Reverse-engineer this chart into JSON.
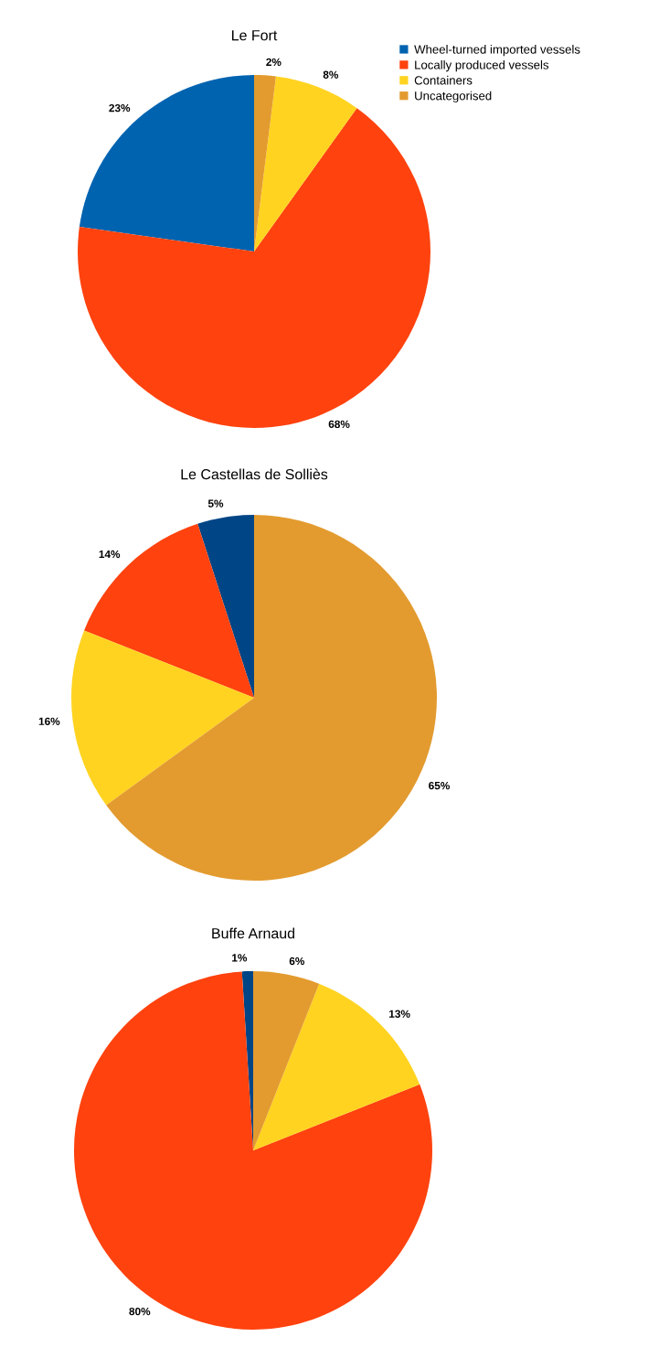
{
  "chart_data": [
    {
      "type": "pie",
      "title": "Le Fort",
      "categories": [
        "Wheel-turned imported vessels",
        "Locally produced vessels",
        "Containers",
        "Uncategorised"
      ],
      "values": [
        23,
        68,
        8,
        2
      ],
      "value_labels": [
        "23%",
        "68%",
        "8%",
        "2%"
      ],
      "colors": [
        "#0063b0",
        "#ff420e",
        "#ffd320",
        "#e39b2f"
      ],
      "legend": "top right"
    },
    {
      "type": "pie",
      "title": "Le Castellas de Solliès",
      "categories": [
        null,
        null,
        null,
        null
      ],
      "values": [
        5,
        14,
        16,
        65
      ],
      "value_labels": [
        "5%",
        "14%",
        "16%",
        "65%"
      ],
      "colors": [
        "#004586",
        "#ff420e",
        "#ffd320",
        "#e39b2f"
      ]
    },
    {
      "type": "pie",
      "title": "Buffe Arnaud",
      "categories": [
        null,
        null,
        null,
        null
      ],
      "values": [
        1,
        80,
        13,
        6
      ],
      "value_labels": [
        "1%",
        "80%",
        "13%",
        "6%"
      ],
      "colors": [
        "#004586",
        "#ff420e",
        "#ffd320",
        "#e39b2f"
      ]
    }
  ]
}
